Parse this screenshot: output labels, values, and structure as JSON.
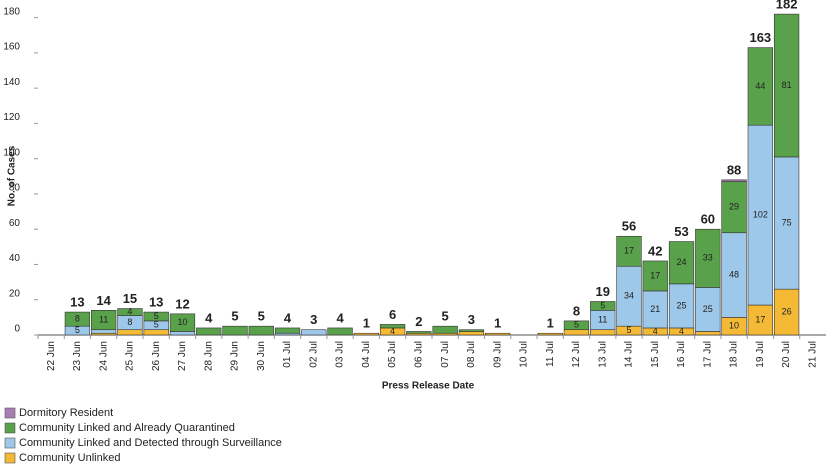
{
  "chart_data": {
    "type": "stacked-bar",
    "x_label": "Press Release Date",
    "y_label": "No. of Cases",
    "categories": [
      "22 Jun",
      "23 Jun",
      "24 Jun",
      "25 Jun",
      "26 Jun",
      "27 Jun",
      "28 Jun",
      "29 Jun",
      "30 Jun",
      "01 Jul",
      "02 Jul",
      "03 Jul",
      "04 Jul",
      "05 Jul",
      "06 Jul",
      "07 Jul",
      "08 Jul",
      "09 Jul",
      "10 Jul",
      "11 Jul",
      "12 Jul",
      "13 Jul",
      "14 Jul",
      "15 Jul",
      "16 Jul",
      "17 Jul",
      "18 Jul",
      "19 Jul",
      "20 Jul",
      "21 Jul"
    ],
    "series": [
      {
        "name": "Community Unlinked",
        "color": "#f4b935",
        "values": [
          null,
          0,
          1,
          3,
          3,
          0,
          0,
          0,
          0,
          0,
          0,
          0,
          1,
          4,
          1,
          1,
          2,
          1,
          0,
          1,
          3,
          3,
          5,
          4,
          4,
          2,
          10,
          17,
          26,
          null
        ],
        "value_labels": [
          null,
          null,
          null,
          null,
          null,
          null,
          null,
          null,
          null,
          null,
          null,
          null,
          null,
          "4",
          null,
          null,
          null,
          null,
          null,
          null,
          null,
          null,
          "5",
          "4",
          "4",
          null,
          "10",
          "17",
          "26",
          null
        ]
      },
      {
        "name": "Community Linked and Detected through Surveillance",
        "color": "#9ec8ea",
        "values": [
          null,
          5,
          2,
          8,
          5,
          2,
          0,
          0,
          0,
          1,
          3,
          0,
          0,
          0,
          0,
          0,
          0,
          0,
          0,
          0,
          0,
          11,
          34,
          21,
          25,
          25,
          48,
          102,
          75,
          null
        ],
        "value_labels": [
          null,
          "5",
          null,
          "8",
          "5",
          null,
          null,
          null,
          null,
          null,
          null,
          null,
          null,
          null,
          null,
          null,
          null,
          null,
          null,
          null,
          null,
          "11",
          "34",
          "21",
          "25",
          "25",
          "48",
          "102",
          "75",
          null
        ]
      },
      {
        "name": "Community Linked and Already Quarantined",
        "color": "#5aa14b",
        "values": [
          null,
          8,
          11,
          4,
          5,
          10,
          4,
          5,
          5,
          3,
          0,
          4,
          0,
          2,
          1,
          4,
          1,
          0,
          0,
          0,
          5,
          5,
          17,
          17,
          24,
          33,
          29,
          44,
          81,
          null
        ],
        "value_labels": [
          null,
          "8",
          "11",
          "4",
          "5",
          "10",
          null,
          null,
          null,
          null,
          null,
          null,
          null,
          null,
          null,
          null,
          null,
          null,
          null,
          null,
          "5",
          "5",
          "17",
          "17",
          "24",
          "33",
          "29",
          "44",
          "81",
          null
        ]
      },
      {
        "name": "Dormitory Resident",
        "color": "#a77fb4",
        "values": [
          null,
          0,
          0,
          0,
          0,
          0,
          0,
          0,
          0,
          0,
          0,
          0,
          0,
          0,
          0,
          0,
          0,
          0,
          0,
          0,
          0,
          0,
          0,
          0,
          0,
          0,
          1,
          0,
          0,
          null
        ],
        "value_labels": [
          null,
          null,
          null,
          null,
          null,
          null,
          null,
          null,
          null,
          null,
          null,
          null,
          null,
          null,
          null,
          null,
          null,
          null,
          null,
          null,
          null,
          null,
          null,
          null,
          null,
          null,
          null,
          null,
          null,
          null
        ]
      }
    ],
    "totals": [
      null,
      13,
      14,
      15,
      13,
      12,
      4,
      5,
      5,
      4,
      3,
      4,
      1,
      6,
      2,
      5,
      3,
      1,
      null,
      1,
      8,
      19,
      56,
      42,
      53,
      60,
      88,
      163,
      182,
      null
    ],
    "legend_order": [
      3,
      2,
      1,
      0
    ],
    "ylim": [
      0,
      190
    ],
    "yticks": [
      0,
      20,
      40,
      60,
      80,
      100,
      120,
      140,
      160,
      180
    ],
    "grid": false
  }
}
